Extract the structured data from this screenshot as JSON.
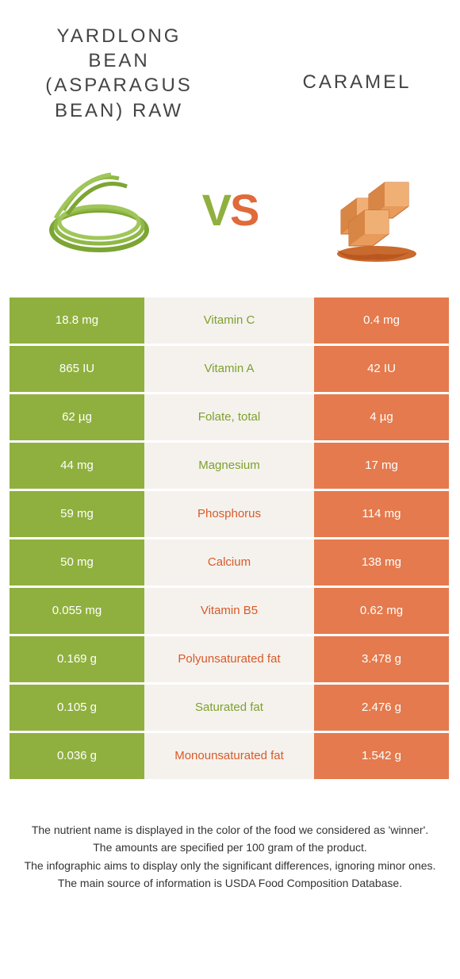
{
  "header": {
    "left_title": "YARDLONG BEAN (ASPARAGUS BEAN) RAW",
    "right_title": "CARAMEL",
    "vs_v": "V",
    "vs_s": "S"
  },
  "colors": {
    "green": "#8fb03e",
    "orange": "#e47a4d",
    "name_green": "#7da02e",
    "name_orange": "#d85a2a",
    "mid_bg": "#f5f2ed"
  },
  "rows": [
    {
      "left": "18.8 mg",
      "name": "Vitamin C",
      "winner": "green",
      "right": "0.4 mg"
    },
    {
      "left": "865 IU",
      "name": "Vitamin A",
      "winner": "green",
      "right": "42 IU"
    },
    {
      "left": "62 µg",
      "name": "Folate, total",
      "winner": "green",
      "right": "4 µg"
    },
    {
      "left": "44 mg",
      "name": "Magnesium",
      "winner": "green",
      "right": "17 mg"
    },
    {
      "left": "59 mg",
      "name": "Phosphorus",
      "winner": "orange",
      "right": "114 mg"
    },
    {
      "left": "50 mg",
      "name": "Calcium",
      "winner": "orange",
      "right": "138 mg"
    },
    {
      "left": "0.055 mg",
      "name": "Vitamin B5",
      "winner": "orange",
      "right": "0.62 mg"
    },
    {
      "left": "0.169 g",
      "name": "Polyunsaturated fat",
      "winner": "orange",
      "right": "3.478 g"
    },
    {
      "left": "0.105 g",
      "name": "Saturated fat",
      "winner": "green",
      "right": "2.476 g"
    },
    {
      "left": "0.036 g",
      "name": "Monounsaturated fat",
      "winner": "orange",
      "right": "1.542 g"
    }
  ],
  "footer": {
    "line1": "The nutrient name is displayed in the color of the food we considered as 'winner'.",
    "line2": "The amounts are specified per 100 gram of the product.",
    "line3": "The infographic aims to display only the significant differences, ignoring minor ones.",
    "line4": "The main source of information is USDA Food Composition Database."
  }
}
